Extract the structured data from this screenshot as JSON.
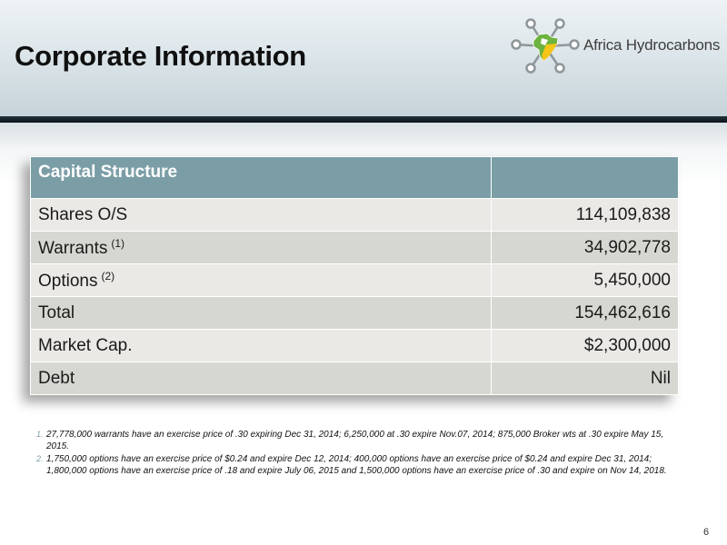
{
  "slide": {
    "title": "Corporate Information",
    "page_number": "6"
  },
  "logo": {
    "text": "Africa Hydrocarbons",
    "colors": {
      "node_gray": "#8f969a",
      "green": "#6db33f",
      "yellow": "#f5c518",
      "white": "#ffffff"
    }
  },
  "table": {
    "header": [
      "Capital Structure",
      ""
    ],
    "rows": [
      {
        "label": "Shares O/S",
        "ref": "",
        "value": "114,109,838"
      },
      {
        "label": "Warrants",
        "ref": "(1)",
        "value": "34,902,778"
      },
      {
        "label": "Options",
        "ref": "(2)",
        "value": "5,450,000"
      },
      {
        "label": "Total",
        "ref": "",
        "value": "154,462,616"
      },
      {
        "label": "Market Cap.",
        "ref": "",
        "value": "$2,300,000"
      },
      {
        "label": "Debt",
        "ref": "",
        "value": "Nil"
      }
    ]
  },
  "footnotes": [
    {
      "number": "1.",
      "text": "27,778,000 warrants have an exercise price of .30  expiring Dec 31, 2014; 6,250,000 at .30 expire Nov.07, 2014; 875,000 Broker wts  at .30 expire May 15, 2015."
    },
    {
      "number": "2.",
      "text": "1,750,000 options have an exercise price of $0.24 and expire Dec 12, 2014; 400,000 options have an exercise price of $0.24 and expire Dec 31, 2014; 1,800,000 options have an exercise price of .18 and expire July 06, 2015 and 1,500,000 options have an exercise price of .30 and expire on Nov 14, 2018."
    }
  ],
  "theme": {
    "header_fill": "#7b9ea6",
    "row_light": "#eae9e6",
    "row_dark": "#d7d7d2"
  }
}
